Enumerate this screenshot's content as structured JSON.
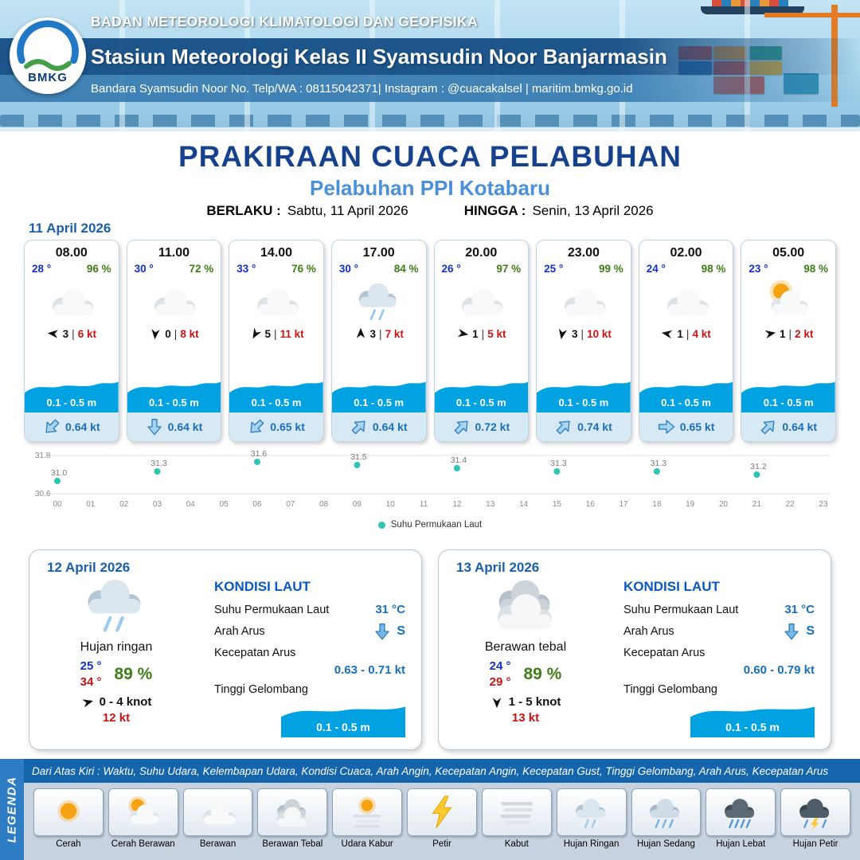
{
  "header": {
    "agency": "BADAN METEOROLOGI KLIMATOLOGI DAN GEOFISIKA",
    "station": "Stasiun Meteorologi Kelas II Syamsudin Noor Banjarmasin",
    "contact": "Bandara Syamsudin Noor No. Telp/WA : 08115042371| Instagram : @cuacakalsel | maritim.bmkg.go.id",
    "logo_text": "BMKG"
  },
  "title": {
    "main": "PRAKIRAAN CUACA PELABUHAN",
    "subtitle": "Pelabuhan PPI Kotabaru",
    "berlaku_label": "BERLAKU :",
    "berlaku_value": "Sabtu, 11 April 2026",
    "hingga_label": "HINGGA :",
    "hingga_value": "Senin, 13 April 2026"
  },
  "ui": {
    "wind_separator": "|"
  },
  "hourly": {
    "date": "11 April 2026",
    "cards": [
      {
        "time": "08.00",
        "temp": "28 °",
        "humidity": "96 %",
        "icon": "berawan",
        "wind_deg": 185,
        "wind_speed": "3",
        "gust": "6 kt",
        "wave": "0.1 - 0.5 m",
        "current_deg": 135,
        "current_speed": "0.64 kt"
      },
      {
        "time": "11.00",
        "temp": "30 °",
        "humidity": "72 %",
        "icon": "berawan",
        "wind_deg": 95,
        "wind_speed": "0",
        "gust": "8 kt",
        "wave": "0.1 - 0.5 m",
        "current_deg": 90,
        "current_speed": "0.64 kt"
      },
      {
        "time": "14.00",
        "temp": "33 °",
        "humidity": "76 %",
        "icon": "berawan",
        "wind_deg": 120,
        "wind_speed": "5",
        "gust": "11 kt",
        "wave": "0.1 - 0.5 m",
        "current_deg": 135,
        "current_speed": "0.65 kt"
      },
      {
        "time": "17.00",
        "temp": "30 °",
        "humidity": "84 %",
        "icon": "hujan-ringan",
        "wind_deg": 270,
        "wind_speed": "3",
        "gust": "7 kt",
        "wave": "0.1 - 0.5 m",
        "current_deg": 315,
        "current_speed": "0.64 kt"
      },
      {
        "time": "20.00",
        "temp": "26 °",
        "humidity": "97 %",
        "icon": "berawan",
        "wind_deg": 10,
        "wind_speed": "1",
        "gust": "5 kt",
        "wave": "0.1 - 0.5 m",
        "current_deg": 315,
        "current_speed": "0.72 kt"
      },
      {
        "time": "23.00",
        "temp": "25 °",
        "humidity": "99 %",
        "icon": "berawan",
        "wind_deg": 100,
        "wind_speed": "3",
        "gust": "10 kt",
        "wave": "0.1 - 0.5 m",
        "current_deg": 315,
        "current_speed": "0.74 kt"
      },
      {
        "time": "02.00",
        "temp": "24 °",
        "humidity": "98 %",
        "icon": "berawan",
        "wind_deg": 190,
        "wind_speed": "1",
        "gust": "4 kt",
        "wave": "0.1 - 0.5 m",
        "current_deg": 0,
        "current_speed": "0.65 kt"
      },
      {
        "time": "05.00",
        "temp": "23 °",
        "humidity": "98 %",
        "icon": "cerah-berawan",
        "wind_deg": 350,
        "wind_speed": "1",
        "gust": "2 kt",
        "wave": "0.1 - 0.5 m",
        "current_deg": 315,
        "current_speed": "0.64 kt"
      }
    ]
  },
  "chart_data": {
    "type": "scatter",
    "title": "",
    "legend": "Suhu Permukaan Laut",
    "xlabel": "",
    "ylabel": "",
    "ylim": [
      30.6,
      31.8
    ],
    "x_ticks": [
      "00",
      "01",
      "02",
      "03",
      "04",
      "05",
      "06",
      "07",
      "08",
      "09",
      "10",
      "11",
      "12",
      "13",
      "14",
      "15",
      "16",
      "17",
      "18",
      "19",
      "20",
      "21",
      "22",
      "23"
    ],
    "points": [
      {
        "x": 0,
        "y": 31.0
      },
      {
        "x": 3,
        "y": 31.3
      },
      {
        "x": 6,
        "y": 31.6
      },
      {
        "x": 9,
        "y": 31.5
      },
      {
        "x": 12,
        "y": 31.4
      },
      {
        "x": 15,
        "y": 31.3
      },
      {
        "x": 18,
        "y": 31.3
      },
      {
        "x": 21,
        "y": 31.2
      }
    ],
    "dot_color": "#2ec4b6",
    "grid": "top-bottom-lines",
    "legend_position": "bottom-center"
  },
  "daily": [
    {
      "date": "12 April 2026",
      "icon": "hujan-ringan",
      "condition": "Hujan ringan",
      "temp_min": "25 °",
      "temp_max": "34 °",
      "humidity": "89 %",
      "wind_deg": 345,
      "wind_range": "0  - 4 knot",
      "gust": "12 kt",
      "sea": {
        "title": "KONDISI LAUT",
        "sst_label": "Suhu Permukaan Laut",
        "sst_value": "31 °C",
        "current_dir_label": "Arah Arus",
        "current_dir": "S",
        "current_dir_deg": 90,
        "current_speed_label": "Kecepatan Arus",
        "current_speed": "0.63 - 0.71 kt",
        "wave_label": "Tinggi Gelombang",
        "wave_value": "0.1 - 0.5 m"
      }
    },
    {
      "date": "13 April 2026",
      "icon": "berawan-tebal",
      "condition": "Berawan tebal",
      "temp_min": "24 °",
      "temp_max": "29 °",
      "humidity": "89 %",
      "wind_deg": 90,
      "wind_range": "1  - 5 knot",
      "gust": "13 kt",
      "sea": {
        "title": "KONDISI LAUT",
        "sst_label": "Suhu Permukaan Laut",
        "sst_value": "31 °C",
        "current_dir_label": "Arah Arus",
        "current_dir": "S",
        "current_dir_deg": 90,
        "current_speed_label": "Kecepatan Arus",
        "current_speed": "0.60 - 0.79 kt",
        "wave_label": "Tinggi Gelombang",
        "wave_value": "0.1 - 0.5 m"
      }
    }
  ],
  "legend_bar": {
    "description": "Dari Atas Kiri : Waktu, Suhu Udara, Kelembapan Udara, Kondisi Cuaca, Arah Angin, Kecepatan Angin, Kecepatan Gust, Tinggi Gelombang, Arah Arus, Kecepatan Arus",
    "vertical_label": "LEGENDA",
    "items": [
      {
        "icon": "cerah",
        "label": "Cerah"
      },
      {
        "icon": "cerah-berawan",
        "label": "Cerah Berawan"
      },
      {
        "icon": "berawan",
        "label": "Berawan"
      },
      {
        "icon": "berawan-tebal",
        "label": "Berawan Tebal"
      },
      {
        "icon": "udara-kabur",
        "label": "Udara Kabur"
      },
      {
        "icon": "petir",
        "label": "Petir"
      },
      {
        "icon": "kabut",
        "label": "Kabut"
      },
      {
        "icon": "hujan-ringan",
        "label": "Hujan Ringan"
      },
      {
        "icon": "hujan-sedang",
        "label": "Hujan Sedang"
      },
      {
        "icon": "hujan-lebat",
        "label": "Hujan Lebat"
      },
      {
        "icon": "hujan-petir",
        "label": "Hujan Petir"
      }
    ]
  },
  "colors": {
    "title_navy": "#16418c",
    "subtitle_blue": "#4a90d9",
    "temp_blue": "#1330cc",
    "humidity_green": "#3f7d16",
    "gust_red": "#c81414",
    "current_blue": "#1a6fba",
    "wave_blue": "#00a2e2",
    "chart_dot_teal": "#2ec4b6",
    "legend_strip_blue": "#1565ad"
  }
}
